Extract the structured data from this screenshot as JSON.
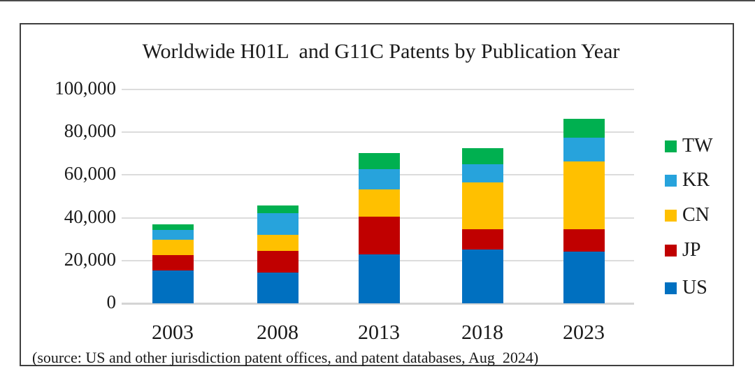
{
  "chart_data": {
    "type": "bar",
    "stacked": true,
    "title": "Worldwide H01L  and G11C Patents by Publication Year",
    "categories": [
      "2003",
      "2008",
      "2013",
      "2018",
      "2023"
    ],
    "series": [
      {
        "name": "US",
        "color": "#0070C0",
        "values": [
          15500,
          14300,
          22800,
          25200,
          24300
        ]
      },
      {
        "name": "JP",
        "color": "#C00000",
        "values": [
          7200,
          10100,
          17600,
          9400,
          10400
        ]
      },
      {
        "name": "CN",
        "color": "#FFC000",
        "values": [
          7000,
          7600,
          12800,
          21900,
          31500
        ]
      },
      {
        "name": "KR",
        "color": "#27A3DC",
        "values": [
          4600,
          10200,
          9600,
          8600,
          11100
        ]
      },
      {
        "name": "TW",
        "color": "#00B050",
        "values": [
          2500,
          3600,
          7400,
          7300,
          8900
        ]
      }
    ],
    "legend_order_top_to_bottom": [
      "TW",
      "KR",
      "CN",
      "JP",
      "US"
    ],
    "legend_position": "right",
    "grid": true,
    "ylim": [
      0,
      100000
    ],
    "yticks": [
      0,
      20000,
      40000,
      60000,
      80000,
      100000
    ],
    "ytick_labels": [
      "0",
      "20,000",
      "40,000",
      "60,000",
      "80,000",
      "100,000"
    ],
    "xlabel": "",
    "ylabel": "",
    "source_note": "(source: US and other jurisdiction patent offices, and patent databases, Aug  2024)"
  },
  "frame": {
    "border_color": "#3f3f3f",
    "gridline_color": "#dcdcdc"
  }
}
